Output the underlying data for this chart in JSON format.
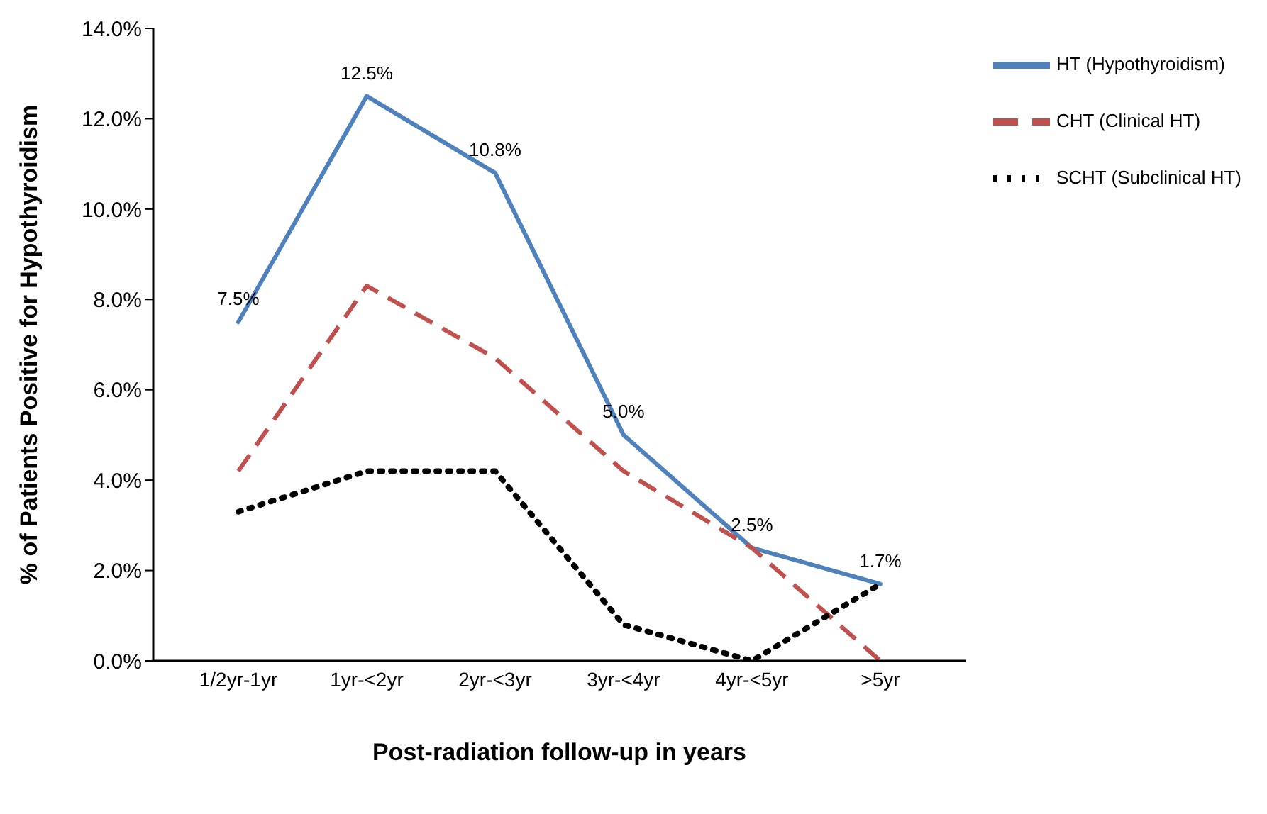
{
  "chart_data": {
    "type": "line",
    "xlabel": "Post-radiation follow-up in years",
    "ylabel": "% of Patients  Positive for Hypothyroidism",
    "categories": [
      "1/2yr-1yr",
      "1yr-<2yr",
      "2yr-<3yr",
      "3yr-<4yr",
      "4yr-<5yr",
      ">5yr"
    ],
    "series": [
      {
        "name": "HT (Hypothyroidism)",
        "color": "#4f81bd",
        "line_style": "solid",
        "values": [
          7.5,
          12.5,
          10.8,
          5.0,
          2.5,
          1.7
        ],
        "value_labels": [
          "7.5%",
          "12.5%",
          "10.8%",
          "5.0%",
          "2.5%",
          "1.7%"
        ]
      },
      {
        "name": "CHT (Clinical HT)",
        "color": "#c0504d",
        "line_style": "dashed",
        "values": [
          4.2,
          8.3,
          6.7,
          4.2,
          2.5,
          0
        ]
      },
      {
        "name": "SCHT (Subclinical HT)",
        "color": "#000000",
        "line_style": "dotted",
        "values": [
          3.3,
          4.2,
          4.2,
          0.8,
          0,
          1.7
        ]
      }
    ],
    "ylim": [
      0,
      14
    ],
    "yticks": [
      {
        "value": 0,
        "label": "0.0%"
      },
      {
        "value": 2,
        "label": "2.0%"
      },
      {
        "value": 4,
        "label": "4.0%"
      },
      {
        "value": 6,
        "label": "6.0%"
      },
      {
        "value": 8,
        "label": "8.0%"
      },
      {
        "value": 10,
        "label": "10.0%"
      },
      {
        "value": 12,
        "label": "12.0%"
      },
      {
        "value": 14,
        "label": "14.0%"
      }
    ],
    "grid": false,
    "legend": "top right",
    "marker": "none"
  }
}
